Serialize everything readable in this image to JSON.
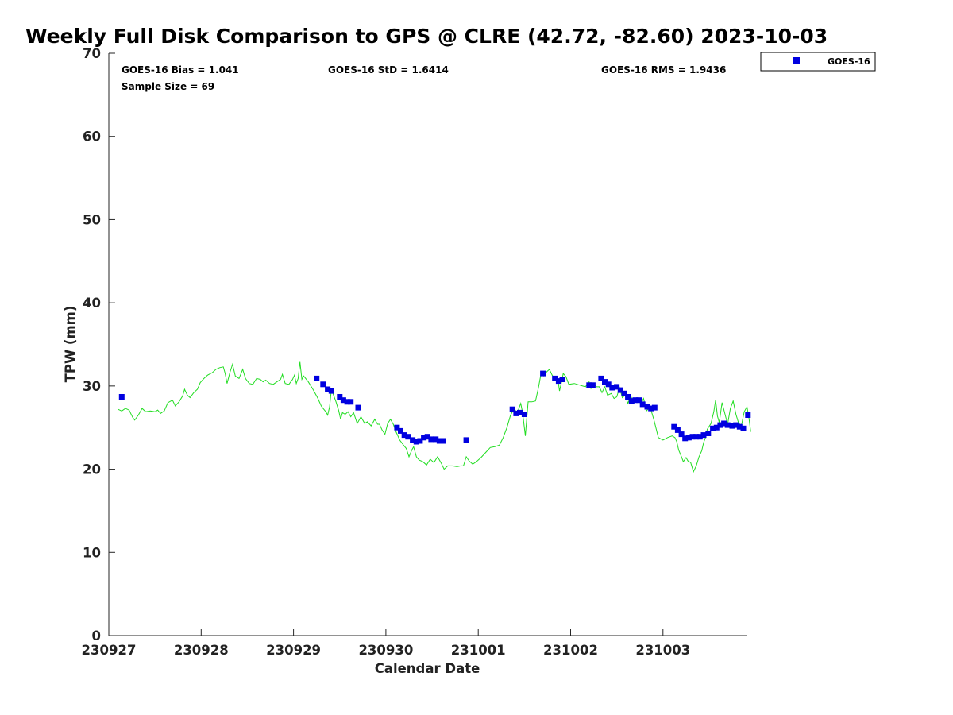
{
  "colors": {
    "obs_marker": "#0000e0",
    "gps_line": "#22dd22",
    "axis": "#262626"
  },
  "chart_data": {
    "type": "scatter",
    "title": "Weekly Full Disk Comparison to GPS @ CLRE (42.72, -82.60) 2023-10-03",
    "xlabel": "Calendar Date",
    "ylabel": "TPW (mm)",
    "ylim": [
      0,
      70
    ],
    "yticks": [
      0,
      10,
      20,
      30,
      40,
      50,
      60,
      70
    ],
    "xticks": [
      "230927",
      "230928",
      "230929",
      "230930",
      "231001",
      "231002",
      "231003"
    ],
    "xlim": [
      0,
      6.95
    ],
    "grid": false,
    "legend_position": "top-right, outside axes",
    "stats": {
      "bias": "GOES-16 Bias = 1.041",
      "std": "GOES-16 StD = 1.6414",
      "rms": "GOES-16 RMS = 1.9436",
      "sample": "Sample Size = 69"
    },
    "series": [
      {
        "name": "GOES-16",
        "marker": "square",
        "color": "#0000e0",
        "points": [
          [
            0.14,
            28.7
          ],
          [
            2.25,
            30.9
          ],
          [
            2.32,
            30.2
          ],
          [
            2.37,
            29.6
          ],
          [
            2.41,
            29.4
          ],
          [
            2.5,
            28.7
          ],
          [
            2.54,
            28.3
          ],
          [
            2.58,
            28.1
          ],
          [
            2.62,
            28.1
          ],
          [
            2.7,
            27.4
          ],
          [
            3.12,
            25.0
          ],
          [
            3.16,
            24.6
          ],
          [
            3.2,
            24.1
          ],
          [
            3.24,
            23.9
          ],
          [
            3.29,
            23.5
          ],
          [
            3.33,
            23.3
          ],
          [
            3.37,
            23.4
          ],
          [
            3.41,
            23.8
          ],
          [
            3.45,
            23.9
          ],
          [
            3.49,
            23.6
          ],
          [
            3.54,
            23.6
          ],
          [
            3.58,
            23.4
          ],
          [
            3.62,
            23.4
          ],
          [
            3.87,
            23.5
          ],
          [
            4.37,
            27.2
          ],
          [
            4.41,
            26.7
          ],
          [
            4.45,
            26.8
          ],
          [
            4.5,
            26.6
          ],
          [
            4.7,
            31.5
          ],
          [
            4.83,
            30.9
          ],
          [
            4.87,
            30.6
          ],
          [
            4.91,
            30.8
          ],
          [
            5.2,
            30.1
          ],
          [
            5.24,
            30.1
          ],
          [
            5.33,
            30.9
          ],
          [
            5.37,
            30.5
          ],
          [
            5.41,
            30.2
          ],
          [
            5.45,
            29.8
          ],
          [
            5.5,
            29.9
          ],
          [
            5.54,
            29.5
          ],
          [
            5.58,
            29.1
          ],
          [
            5.62,
            28.7
          ],
          [
            5.66,
            28.2
          ],
          [
            5.7,
            28.3
          ],
          [
            5.74,
            28.3
          ],
          [
            5.78,
            27.8
          ],
          [
            5.83,
            27.5
          ],
          [
            5.87,
            27.3
          ],
          [
            5.91,
            27.4
          ],
          [
            6.12,
            25.1
          ],
          [
            6.16,
            24.7
          ],
          [
            6.2,
            24.2
          ],
          [
            6.24,
            23.7
          ],
          [
            6.28,
            23.8
          ],
          [
            6.32,
            23.9
          ],
          [
            6.36,
            23.9
          ],
          [
            6.4,
            23.9
          ],
          [
            6.44,
            24.1
          ],
          [
            6.49,
            24.3
          ],
          [
            6.54,
            24.9
          ],
          [
            6.58,
            25.0
          ],
          [
            6.62,
            25.3
          ],
          [
            6.66,
            25.5
          ],
          [
            6.7,
            25.3
          ],
          [
            6.75,
            25.2
          ],
          [
            6.79,
            25.3
          ],
          [
            6.83,
            25.1
          ],
          [
            6.87,
            24.9
          ],
          [
            6.92,
            26.5
          ]
        ]
      },
      {
        "name": "",
        "type": "line",
        "color": "#22dd22",
        "points": [
          [
            0.1,
            27.2
          ],
          [
            0.14,
            27.0
          ],
          [
            0.18,
            27.3
          ],
          [
            0.22,
            27.1
          ],
          [
            0.26,
            26.2
          ],
          [
            0.28,
            25.9
          ],
          [
            0.32,
            26.5
          ],
          [
            0.36,
            27.3
          ],
          [
            0.4,
            26.9
          ],
          [
            0.45,
            27.0
          ],
          [
            0.5,
            26.9
          ],
          [
            0.53,
            27.1
          ],
          [
            0.56,
            26.7
          ],
          [
            0.6,
            27.0
          ],
          [
            0.64,
            28.0
          ],
          [
            0.69,
            28.3
          ],
          [
            0.72,
            27.6
          ],
          [
            0.76,
            28.1
          ],
          [
            0.8,
            28.8
          ],
          [
            0.82,
            29.6
          ],
          [
            0.85,
            28.9
          ],
          [
            0.88,
            28.6
          ],
          [
            0.92,
            29.2
          ],
          [
            0.96,
            29.6
          ],
          [
            0.99,
            30.4
          ],
          [
            1.03,
            30.9
          ],
          [
            1.07,
            31.3
          ],
          [
            1.12,
            31.6
          ],
          [
            1.16,
            32.0
          ],
          [
            1.2,
            32.2
          ],
          [
            1.24,
            32.3
          ],
          [
            1.26,
            31.5
          ],
          [
            1.28,
            30.3
          ],
          [
            1.31,
            31.6
          ],
          [
            1.34,
            32.6
          ],
          [
            1.37,
            31.2
          ],
          [
            1.41,
            30.9
          ],
          [
            1.45,
            32.0
          ],
          [
            1.48,
            30.9
          ],
          [
            1.52,
            30.3
          ],
          [
            1.56,
            30.2
          ],
          [
            1.6,
            30.9
          ],
          [
            1.64,
            30.8
          ],
          [
            1.67,
            30.5
          ],
          [
            1.7,
            30.7
          ],
          [
            1.74,
            30.3
          ],
          [
            1.78,
            30.2
          ],
          [
            1.82,
            30.5
          ],
          [
            1.86,
            30.8
          ],
          [
            1.88,
            31.4
          ],
          [
            1.91,
            30.3
          ],
          [
            1.95,
            30.2
          ],
          [
            1.99,
            30.8
          ],
          [
            2.01,
            31.3
          ],
          [
            2.03,
            30.3
          ],
          [
            2.05,
            30.9
          ],
          [
            2.07,
            32.9
          ],
          [
            2.09,
            30.8
          ],
          [
            2.11,
            31.2
          ],
          [
            2.16,
            30.5
          ],
          [
            2.21,
            29.6
          ],
          [
            2.26,
            28.6
          ],
          [
            2.3,
            27.6
          ],
          [
            2.32,
            27.3
          ],
          [
            2.35,
            26.9
          ],
          [
            2.37,
            26.5
          ],
          [
            2.39,
            27.5
          ],
          [
            2.41,
            29.6
          ],
          [
            2.43,
            29.0
          ],
          [
            2.46,
            28.1
          ],
          [
            2.49,
            27.0
          ],
          [
            2.51,
            26.0
          ],
          [
            2.53,
            26.8
          ],
          [
            2.56,
            26.6
          ],
          [
            2.59,
            26.9
          ],
          [
            2.62,
            26.3
          ],
          [
            2.65,
            26.8
          ],
          [
            2.69,
            25.5
          ],
          [
            2.73,
            26.3
          ],
          [
            2.77,
            25.5
          ],
          [
            2.8,
            25.7
          ],
          [
            2.84,
            25.2
          ],
          [
            2.88,
            26.0
          ],
          [
            2.91,
            25.4
          ],
          [
            2.93,
            25.4
          ],
          [
            2.96,
            24.7
          ],
          [
            2.99,
            24.2
          ],
          [
            3.02,
            25.5
          ],
          [
            3.05,
            26.0
          ],
          [
            3.08,
            25.4
          ],
          [
            3.11,
            24.5
          ],
          [
            3.15,
            23.5
          ],
          [
            3.19,
            22.9
          ],
          [
            3.22,
            22.5
          ],
          [
            3.25,
            21.5
          ],
          [
            3.28,
            22.3
          ],
          [
            3.3,
            22.7
          ],
          [
            3.33,
            21.5
          ],
          [
            3.36,
            21.1
          ],
          [
            3.4,
            20.9
          ],
          [
            3.44,
            20.5
          ],
          [
            3.48,
            21.2
          ],
          [
            3.52,
            20.8
          ],
          [
            3.56,
            21.5
          ],
          [
            3.6,
            20.7
          ],
          [
            3.63,
            20.0
          ],
          [
            3.67,
            20.4
          ],
          [
            3.72,
            20.4
          ],
          [
            3.77,
            20.3
          ],
          [
            3.81,
            20.4
          ],
          [
            3.84,
            20.4
          ],
          [
            3.87,
            21.5
          ],
          [
            3.9,
            21.0
          ],
          [
            3.94,
            20.6
          ],
          [
            3.98,
            20.9
          ],
          [
            4.03,
            21.4
          ],
          [
            4.08,
            22.0
          ],
          [
            4.13,
            22.6
          ],
          [
            4.18,
            22.7
          ],
          [
            4.23,
            22.9
          ],
          [
            4.27,
            23.8
          ],
          [
            4.31,
            25.0
          ],
          [
            4.35,
            26.5
          ],
          [
            4.39,
            27.3
          ],
          [
            4.42,
            26.7
          ],
          [
            4.46,
            27.9
          ],
          [
            4.48,
            26.8
          ],
          [
            4.51,
            24.0
          ],
          [
            4.54,
            28.1
          ],
          [
            4.58,
            28.1
          ],
          [
            4.62,
            28.2
          ],
          [
            4.65,
            29.7
          ],
          [
            4.68,
            31.5
          ],
          [
            4.71,
            31.2
          ],
          [
            4.74,
            31.7
          ],
          [
            4.77,
            32.0
          ],
          [
            4.8,
            31.3
          ],
          [
            4.83,
            30.8
          ],
          [
            4.86,
            31.0
          ],
          [
            4.88,
            29.4
          ],
          [
            4.9,
            30.4
          ],
          [
            4.92,
            31.5
          ],
          [
            4.95,
            31.1
          ],
          [
            4.98,
            30.2
          ],
          [
            5.04,
            30.3
          ],
          [
            5.1,
            30.1
          ],
          [
            5.16,
            29.9
          ],
          [
            5.2,
            30.5
          ],
          [
            5.22,
            29.7
          ],
          [
            5.25,
            30.3
          ],
          [
            5.28,
            29.9
          ],
          [
            5.31,
            29.9
          ],
          [
            5.34,
            29.2
          ],
          [
            5.37,
            29.9
          ],
          [
            5.4,
            28.9
          ],
          [
            5.44,
            29.1
          ],
          [
            5.47,
            28.5
          ],
          [
            5.5,
            28.7
          ],
          [
            5.53,
            29.8
          ],
          [
            5.56,
            28.6
          ],
          [
            5.59,
            28.9
          ],
          [
            5.62,
            27.9
          ],
          [
            5.65,
            28.8
          ],
          [
            5.68,
            28.1
          ],
          [
            5.71,
            28.4
          ],
          [
            5.73,
            28.5
          ],
          [
            5.76,
            27.8
          ],
          [
            5.79,
            28.5
          ],
          [
            5.82,
            27.0
          ],
          [
            5.86,
            27.5
          ],
          [
            5.9,
            26.0
          ],
          [
            5.95,
            23.8
          ],
          [
            6.0,
            23.5
          ],
          [
            6.05,
            23.8
          ],
          [
            6.1,
            24.0
          ],
          [
            6.13,
            23.8
          ],
          [
            6.15,
            23.3
          ],
          [
            6.17,
            22.3
          ],
          [
            6.2,
            21.5
          ],
          [
            6.22,
            20.9
          ],
          [
            6.25,
            21.4
          ],
          [
            6.27,
            21.0
          ],
          [
            6.3,
            20.8
          ],
          [
            6.33,
            19.7
          ],
          [
            6.36,
            20.4
          ],
          [
            6.39,
            21.5
          ],
          [
            6.42,
            22.2
          ],
          [
            6.44,
            23.2
          ],
          [
            6.46,
            23.8
          ],
          [
            6.48,
            24.8
          ],
          [
            6.52,
            25.5
          ],
          [
            6.55,
            26.9
          ],
          [
            6.57,
            28.3
          ],
          [
            6.59,
            26.4
          ],
          [
            6.61,
            25.6
          ],
          [
            6.64,
            28.0
          ],
          [
            6.67,
            26.7
          ],
          [
            6.7,
            25.4
          ],
          [
            6.73,
            27.3
          ],
          [
            6.76,
            28.2
          ],
          [
            6.79,
            26.6
          ],
          [
            6.82,
            25.5
          ],
          [
            6.85,
            25.3
          ],
          [
            6.88,
            26.9
          ],
          [
            6.91,
            27.5
          ],
          [
            6.93,
            26.2
          ],
          [
            6.95,
            24.5
          ]
        ]
      }
    ]
  }
}
